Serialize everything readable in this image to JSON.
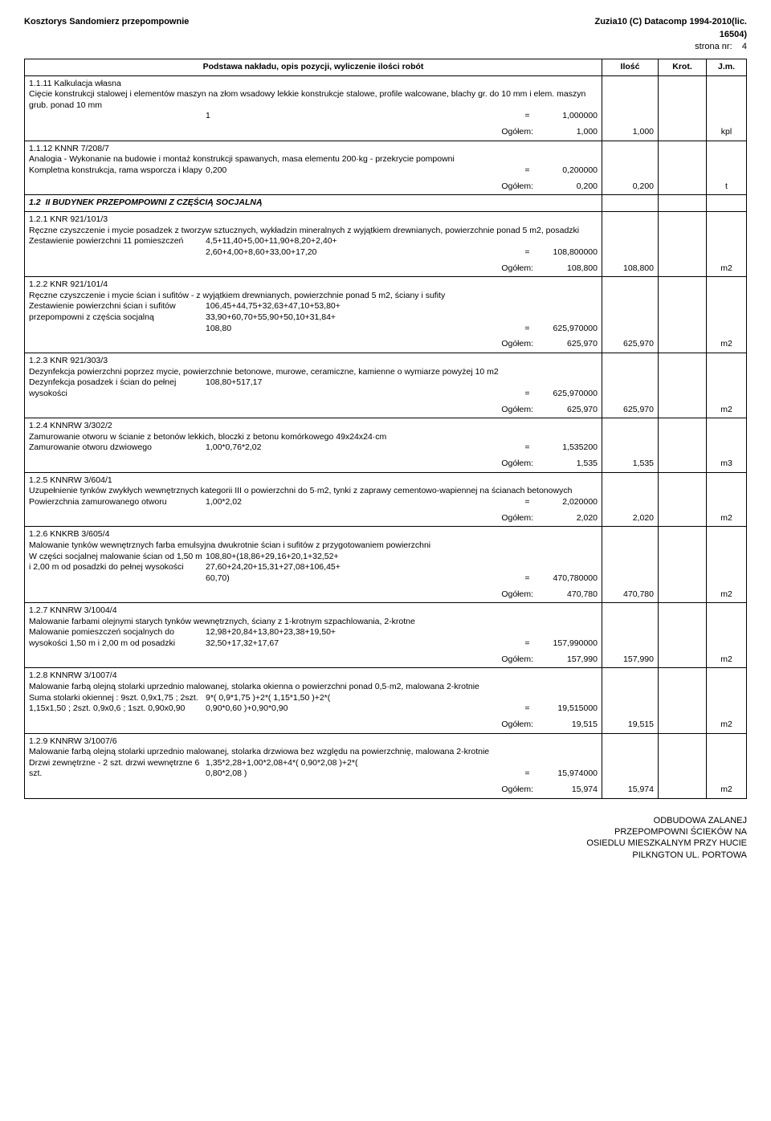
{
  "header": {
    "left": "Kosztorys Sandomierz przepompownie",
    "right_line1": "Zuzia10 (C) Datacomp 1994-2010(lic.",
    "right_line2": "16504)",
    "page_label": "strona nr:",
    "page_num": "4"
  },
  "table": {
    "col_desc": "Podstawa nakładu, opis pozycji, wyliczenie ilości robót",
    "col_qty": "Ilość",
    "col_krot": "Krot.",
    "col_jm": "J.m."
  },
  "rows": [
    {
      "code": "1.1.11",
      "ref": "Kalkulacja własna",
      "desc": "Cięcie konstrukcji stalowej i elementów maszyn na złom wsadowy lekkie konstrukcje stalowe, profile walcowane, blachy gr. do 10 mm i elem. maszyn grub. ponad 10 mm",
      "calc": [
        {
          "label": "",
          "expr": "1",
          "val": "1,000000"
        }
      ],
      "ogolem": "Ogółem:",
      "ogolem_val": "1,000",
      "qty": "1,000",
      "jm": "kpl"
    },
    {
      "code": "1.1.12",
      "ref": "KNNR 7/208/7",
      "desc": "Analogia - Wykonanie na budowie i montaż konstrukcji spawanych, masa elementu 200·kg - przekrycie pompowni",
      "calc": [
        {
          "label": "Kompletna konstrukcja, rama wsporcza i klapy",
          "expr": "0,200",
          "val": "0,200000"
        }
      ],
      "ogolem": "Ogółem:",
      "ogolem_val": "0,200",
      "qty": "0,200",
      "jm": "t"
    },
    {
      "code": "1.2",
      "section": "II BUDYNEK PRZEPOMPOWNI Z CZĘŚCIĄ SOCJALNĄ"
    },
    {
      "code": "1.2.1",
      "ref": "KNR 921/101/3",
      "desc": "Ręczne czyszczenie i mycie posadzek z tworzyw sztucznych, wykładzin mineralnych z wyjątkiem drewnianych, powierzchnie ponad 5 m2, posadzki",
      "calc": [
        {
          "label": "Zestawienie powierzchni 11 pomieszczeń",
          "expr": "4,5+11,40+5,00+11,90+8,20+2,40+\n2,60+4,00+8,60+33,00+17,20",
          "val": "108,800000"
        }
      ],
      "ogolem": "Ogółem:",
      "ogolem_val": "108,800",
      "qty": "108,800",
      "jm": "m2"
    },
    {
      "code": "1.2.2",
      "ref": "KNR 921/101/4",
      "desc": "Ręczne czyszczenie i mycie ścian i sufitów - z wyjątkiem drewnianych, powierzchnie ponad 5 m2, ściany i sufity",
      "calc": [
        {
          "label": "Zestawienie powierzchni ścian i sufitów przepompowni z częścia socjalną",
          "expr": "106,45+44,75+32,63+47,10+53,80+\n33,90+60,70+55,90+50,10+31,84+\n108,80",
          "val": "625,970000"
        }
      ],
      "ogolem": "Ogółem:",
      "ogolem_val": "625,970",
      "qty": "625,970",
      "jm": "m2"
    },
    {
      "code": "1.2.3",
      "ref": "KNR 921/303/3",
      "desc": "Dezynfekcja powierzchni poprzez mycie, powierzchnie betonowe, murowe, ceramiczne, kamienne o wymiarze powyżej 10 m2",
      "calc": [
        {
          "label": "Dezynfekcja posadzek i ścian do pełnej wysokości",
          "expr": "108,80+517,17",
          "val": "625,970000"
        }
      ],
      "ogolem": "Ogółem:",
      "ogolem_val": "625,970",
      "qty": "625,970",
      "jm": "m2"
    },
    {
      "code": "1.2.4",
      "ref": "KNNRW 3/302/2",
      "desc": "Zamurowanie otworu w ścianie z betonów lekkich, bloczki z betonu komórkowego 49x24x24·cm",
      "calc": [
        {
          "label": "Zamurowanie otworu dzwiowego",
          "expr": "1,00*0,76*2,02",
          "val": "1,535200"
        }
      ],
      "ogolem": "Ogółem:",
      "ogolem_val": "1,535",
      "qty": "1,535",
      "jm": "m3"
    },
    {
      "code": "1.2.5",
      "ref": "KNNRW 3/604/1",
      "desc": "Uzupełnienie tynków zwykłych wewnętrznych kategorii III o powierzchni do 5·m2, tynki z zaprawy cementowo-wapiennej na ścianach betonowych",
      "calc": [
        {
          "label": "Powierzchnia zamurowanego otworu",
          "expr": "1,00*2,02",
          "val": "2,020000"
        }
      ],
      "ogolem": "Ogółem:",
      "ogolem_val": "2,020",
      "qty": "2,020",
      "jm": "m2"
    },
    {
      "code": "1.2.6",
      "ref": "KNKRB 3/605/4",
      "desc": "Malowanie tynków wewnętrznych farba emulsyjna dwukrotnie ścian i sufitów z przygotowaniem powierzchni",
      "calc": [
        {
          "label": "W części socjalnej malowanie ścian od 1,50 m i 2,00 m od posadzki do pełnej wysokości",
          "expr": "108,80+(18,86+29,16+20,1+32,52+\n27,60+24,20+15,31+27,08+106,45+\n60,70)",
          "val": "470,780000"
        }
      ],
      "ogolem": "Ogółem:",
      "ogolem_val": "470,780",
      "qty": "470,780",
      "jm": "m2"
    },
    {
      "code": "1.2.7",
      "ref": "KNNRW 3/1004/4",
      "desc": "Malowanie farbami olejnymi starych tynków wewnętrznych, ściany z 1-krotnym szpachlowania, 2-krotne",
      "calc": [
        {
          "label": "Malowanie pomieszczeń socjalnych do wysokości 1,50 m i 2,00 m od posadzki",
          "expr": "12,98+20,84+13,80+23,38+19,50+\n32,50+17,32+17,67",
          "val": "157,990000"
        }
      ],
      "ogolem": "Ogółem:",
      "ogolem_val": "157,990",
      "qty": "157,990",
      "jm": "m2"
    },
    {
      "code": "1.2.8",
      "ref": "KNNRW 3/1007/4",
      "desc": "Malowanie farbą olejną stolarki uprzednio malowanej, stolarka okienna o powierzchni ponad 0,5·m2, malowana 2-krotnie",
      "calc": [
        {
          "label": "Suma stolarki okiennej : 9szt. 0,9x1,75 ; 2szt. 1,15x1,50 ; 2szt. 0,9x0,6 ; 1szt. 0,90x0,90",
          "expr": "9*( 0,9*1,75 )+2*( 1,15*1,50 )+2*(\n0,90*0,60 )+0,90*0,90",
          "val": "19,515000"
        }
      ],
      "ogolem": "Ogółem:",
      "ogolem_val": "19,515",
      "qty": "19,515",
      "jm": "m2"
    },
    {
      "code": "1.2.9",
      "ref": "KNNRW 3/1007/6",
      "desc": "Malowanie farbą olejną stolarki uprzednio malowanej, stolarka drzwiowa bez względu na powierzchnię, malowana 2-krotnie",
      "calc": [
        {
          "label": "Drzwi zewnętrzne - 2 szt. drzwi wewnętrzne 6 szt.",
          "expr": "1,35*2,28+1,00*2,08+4*( 0,90*2,08 )+2*(\n0,80*2,08 )",
          "val": "15,974000"
        }
      ],
      "ogolem": "Ogółem:",
      "ogolem_val": "15,974",
      "qty": "15,974",
      "jm": "m2"
    }
  ],
  "footer": {
    "line1": "ODBUDOWA ZALANEJ",
    "line2": "PRZEPOMPOWNI ŚCIEKÓW NA",
    "line3": "OSIEDLU MIESZKALNYM PRZY HUCIE",
    "line4": "PILKNGTON UL. PORTOWA"
  }
}
